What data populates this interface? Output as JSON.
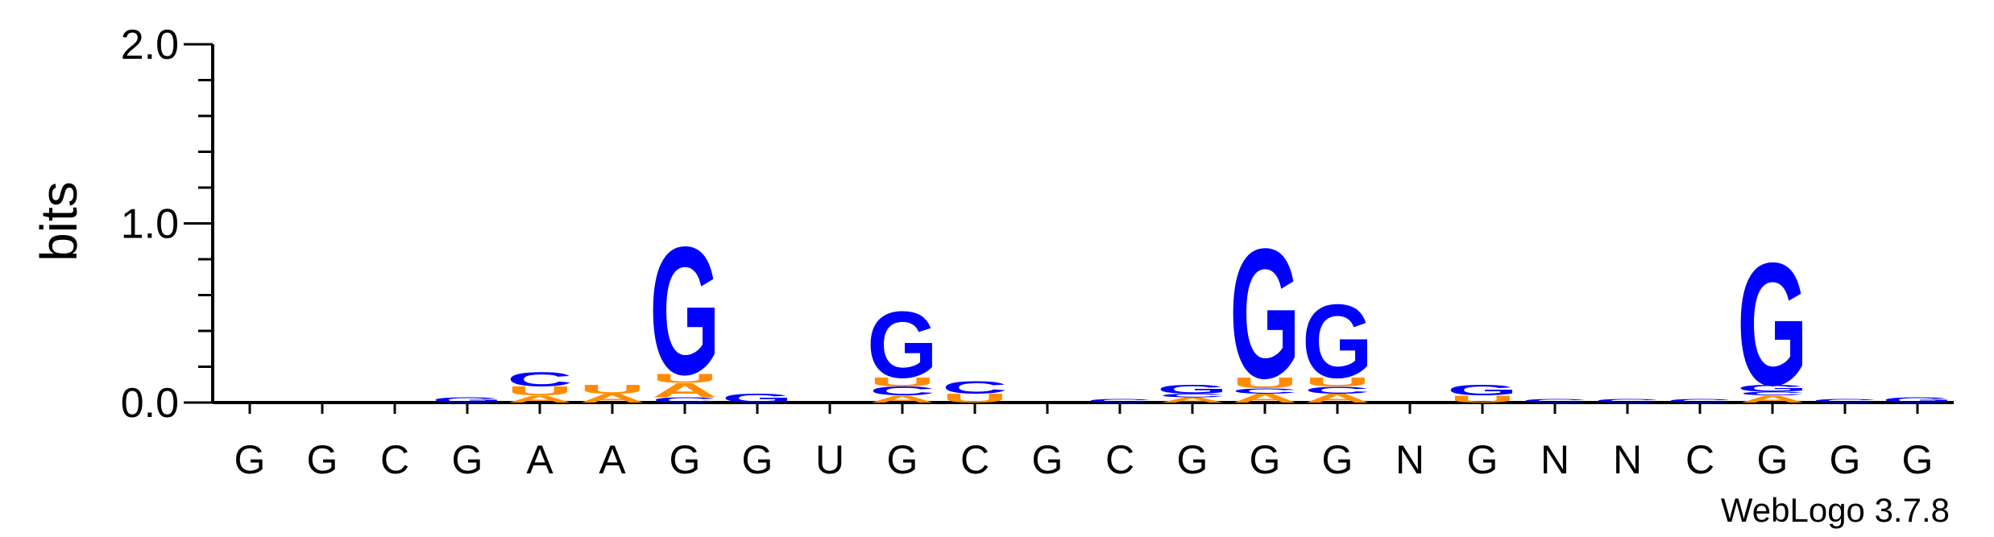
{
  "chart_data": {
    "type": "sequence-logo",
    "ylabel": "bits",
    "ylim": [
      0.0,
      2.0
    ],
    "yticks": [
      "0.0",
      "1.0",
      "2.0"
    ],
    "positions": [
      "G",
      "G",
      "C",
      "G",
      "A",
      "A",
      "G",
      "G",
      "U",
      "G",
      "C",
      "G",
      "C",
      "G",
      "G",
      "G",
      "N",
      "G",
      "N",
      "N",
      "C",
      "G",
      "G",
      "G"
    ],
    "colors": {
      "G": "#0000ff",
      "C": "#0000ff",
      "A": "#ff8c00",
      "U": "#ff8c00"
    },
    "stacks": [
      [],
      [],
      [],
      [
        {
          "letter": "G",
          "bits": 0.03
        }
      ],
      [
        {
          "letter": "A",
          "bits": 0.04
        },
        {
          "letter": "U",
          "bits": 0.05
        },
        {
          "letter": "C",
          "bits": 0.08
        }
      ],
      [
        {
          "letter": "A",
          "bits": 0.05
        },
        {
          "letter": "U",
          "bits": 0.05
        }
      ],
      [
        {
          "letter": "C",
          "bits": 0.03
        },
        {
          "letter": "A",
          "bits": 0.08
        },
        {
          "letter": "U",
          "bits": 0.05
        },
        {
          "letter": "G",
          "bits": 0.73
        }
      ],
      [
        {
          "letter": "G",
          "bits": 0.05
        }
      ],
      [],
      [
        {
          "letter": "A",
          "bits": 0.04
        },
        {
          "letter": "C",
          "bits": 0.05
        },
        {
          "letter": "U",
          "bits": 0.05
        },
        {
          "letter": "G",
          "bits": 0.38
        }
      ],
      [
        {
          "letter": "U",
          "bits": 0.05
        },
        {
          "letter": "C",
          "bits": 0.07
        }
      ],
      [],
      [
        {
          "letter": "C",
          "bits": 0.02
        }
      ],
      [
        {
          "letter": "A",
          "bits": 0.03
        },
        {
          "letter": "C",
          "bits": 0.02
        },
        {
          "letter": "G",
          "bits": 0.05
        }
      ],
      [
        {
          "letter": "A",
          "bits": 0.05
        },
        {
          "letter": "C",
          "bits": 0.03
        },
        {
          "letter": "U",
          "bits": 0.06
        },
        {
          "letter": "G",
          "bits": 0.74
        }
      ],
      [
        {
          "letter": "A",
          "bits": 0.05
        },
        {
          "letter": "C",
          "bits": 0.04
        },
        {
          "letter": "U",
          "bits": 0.05
        },
        {
          "letter": "G",
          "bits": 0.42
        }
      ],
      [],
      [
        {
          "letter": "U",
          "bits": 0.04
        },
        {
          "letter": "G",
          "bits": 0.06
        }
      ],
      [
        {
          "letter": "C",
          "bits": 0.02
        }
      ],
      [
        {
          "letter": "C",
          "bits": 0.02
        }
      ],
      [
        {
          "letter": "C",
          "bits": 0.02
        }
      ],
      [
        {
          "letter": "A",
          "bits": 0.04
        },
        {
          "letter": "C",
          "bits": 0.02
        },
        {
          "letter": "G",
          "bits": 0.04
        },
        {
          "letter": "G",
          "bits": 0.7
        }
      ],
      [
        {
          "letter": "C",
          "bits": 0.02
        }
      ],
      [
        {
          "letter": "G",
          "bits": 0.03
        }
      ]
    ]
  },
  "footer": "WebLogo 3.7.8"
}
